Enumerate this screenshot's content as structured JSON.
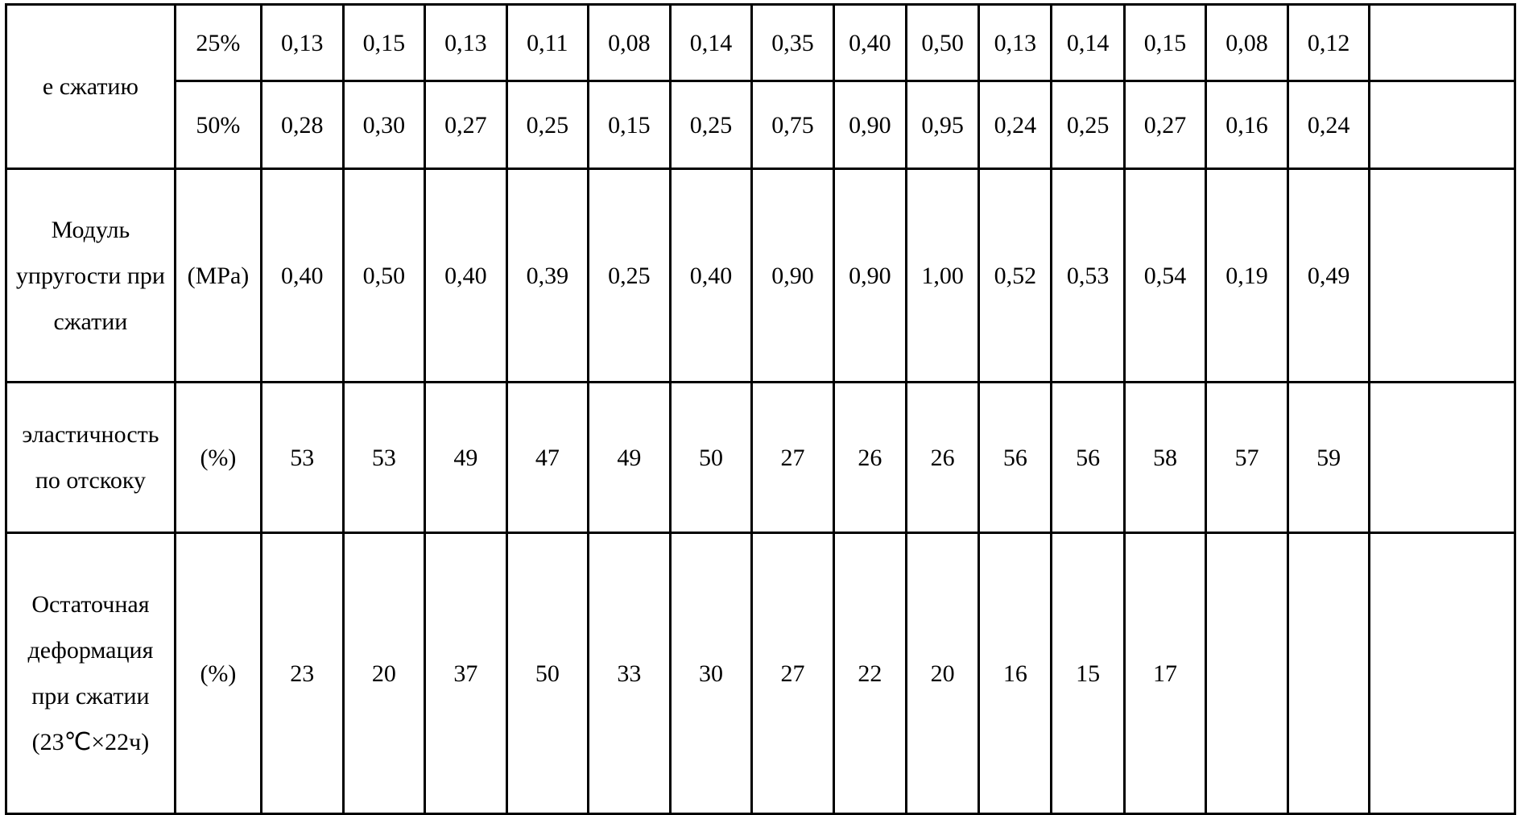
{
  "table": {
    "colors": {
      "border": "#000000",
      "background": "#ffffff",
      "text": "#000000"
    },
    "font": {
      "family": "Times New Roman",
      "size_pt": 22,
      "line_height": 1.9
    },
    "columns": 17,
    "rows": [
      {
        "label": "е сжатию",
        "label_rowspan": 2,
        "unit": "25%",
        "values": [
          "0,13",
          "0,15",
          "0,13",
          "0,11",
          "0,08",
          "0,14",
          "0,35",
          "0,40",
          "0,50",
          "0,13",
          "0,14",
          "0,15",
          "0,08",
          "0,12",
          ""
        ]
      },
      {
        "unit": "50%",
        "values": [
          "0,28",
          "0,30",
          "0,27",
          "0,25",
          "0,15",
          "0,25",
          "0,75",
          "0,90",
          "0,95",
          "0,24",
          "0,25",
          "0,27",
          "0,16",
          "0,24",
          ""
        ]
      },
      {
        "label": "Модуль упругости при сжатии",
        "unit": "(MPa)",
        "values": [
          "0,40",
          "0,50",
          "0,40",
          "0,39",
          "0,25",
          "0,40",
          "0,90",
          "0,90",
          "1,00",
          "0,52",
          "0,53",
          "0,54",
          "0,19",
          "0,49",
          ""
        ]
      },
      {
        "label": "эластичность по отскоку",
        "unit": "(%)",
        "values": [
          "53",
          "53",
          "49",
          "47",
          "49",
          "50",
          "27",
          "26",
          "26",
          "56",
          "56",
          "58",
          "57",
          "59",
          ""
        ],
        "valign_top_indices": [
          12,
          13
        ]
      },
      {
        "label": "Остаточная деформация при сжатии (23℃×22ч)",
        "unit": "(%)",
        "values": [
          "23",
          "20",
          "37",
          "50",
          "33",
          "30",
          "27",
          "22",
          "20",
          "16",
          "15",
          "17",
          "",
          "",
          ""
        ]
      }
    ]
  }
}
